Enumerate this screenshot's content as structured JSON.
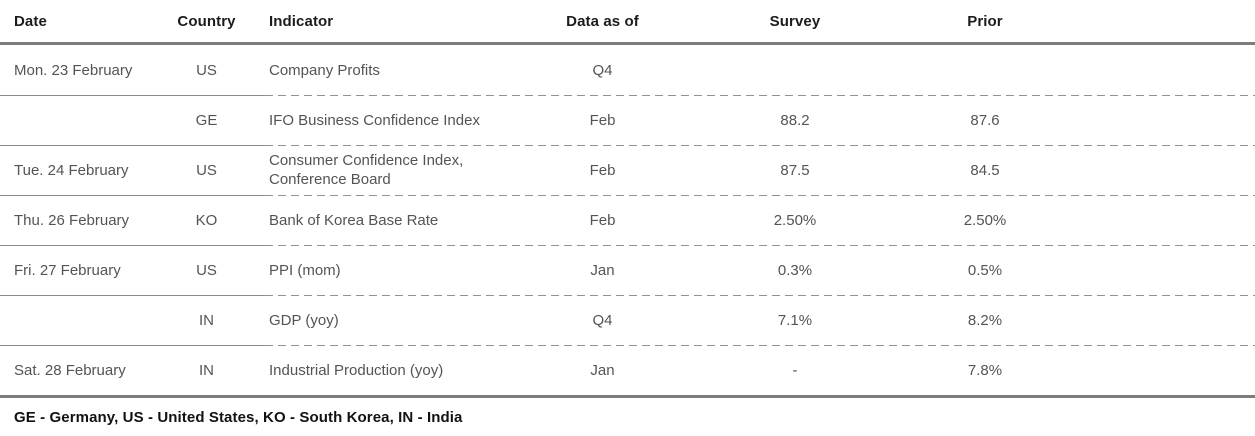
{
  "colors": {
    "background": "#ffffff",
    "header_text": "#1c1c1c",
    "body_text": "#545454",
    "thick_rule": "#7d7d7d",
    "solid_rule": "#8a8a8a",
    "dashed_rule": "#929292"
  },
  "table": {
    "columns": [
      {
        "key": "date",
        "label": "Date"
      },
      {
        "key": "country",
        "label": "Country"
      },
      {
        "key": "indicator",
        "label": "Indicator"
      },
      {
        "key": "data_as_of",
        "label": "Data as of"
      },
      {
        "key": "survey",
        "label": "Survey"
      },
      {
        "key": "prior",
        "label": "Prior"
      }
    ],
    "rows": [
      {
        "date": "Mon. 23 February",
        "country": "US",
        "indicator": "Company Profits",
        "data_as_of": "Q4",
        "survey": "",
        "prior": ""
      },
      {
        "date": "",
        "country": "GE",
        "indicator": "IFO Business Confidence Index",
        "data_as_of": "Feb",
        "survey": "88.2",
        "prior": "87.6"
      },
      {
        "date": "Tue. 24 February",
        "country": "US",
        "indicator": "Consumer Confidence Index, Conference Board",
        "data_as_of": "Feb",
        "survey": "87.5",
        "prior": "84.5"
      },
      {
        "date": "Thu. 26 February",
        "country": "KO",
        "indicator": "Bank of Korea Base Rate",
        "data_as_of": "Feb",
        "survey": "2.50%",
        "prior": "2.50%"
      },
      {
        "date": "Fri. 27 February",
        "country": "US",
        "indicator": "PPI (mom)",
        "data_as_of": "Jan",
        "survey": "0.3%",
        "prior": "0.5%"
      },
      {
        "date": "",
        "country": "IN",
        "indicator": "GDP (yoy)",
        "data_as_of": "Q4",
        "survey": "7.1%",
        "prior": "8.2%"
      },
      {
        "date": "Sat. 28 February",
        "country": "IN",
        "indicator": "Industrial Production (yoy)",
        "data_as_of": "Jan",
        "survey": "-",
        "prior": "7.8%"
      }
    ]
  },
  "footnote": {
    "text": "GE - Germany, US - United States, KO - South Korea, IN - India"
  }
}
